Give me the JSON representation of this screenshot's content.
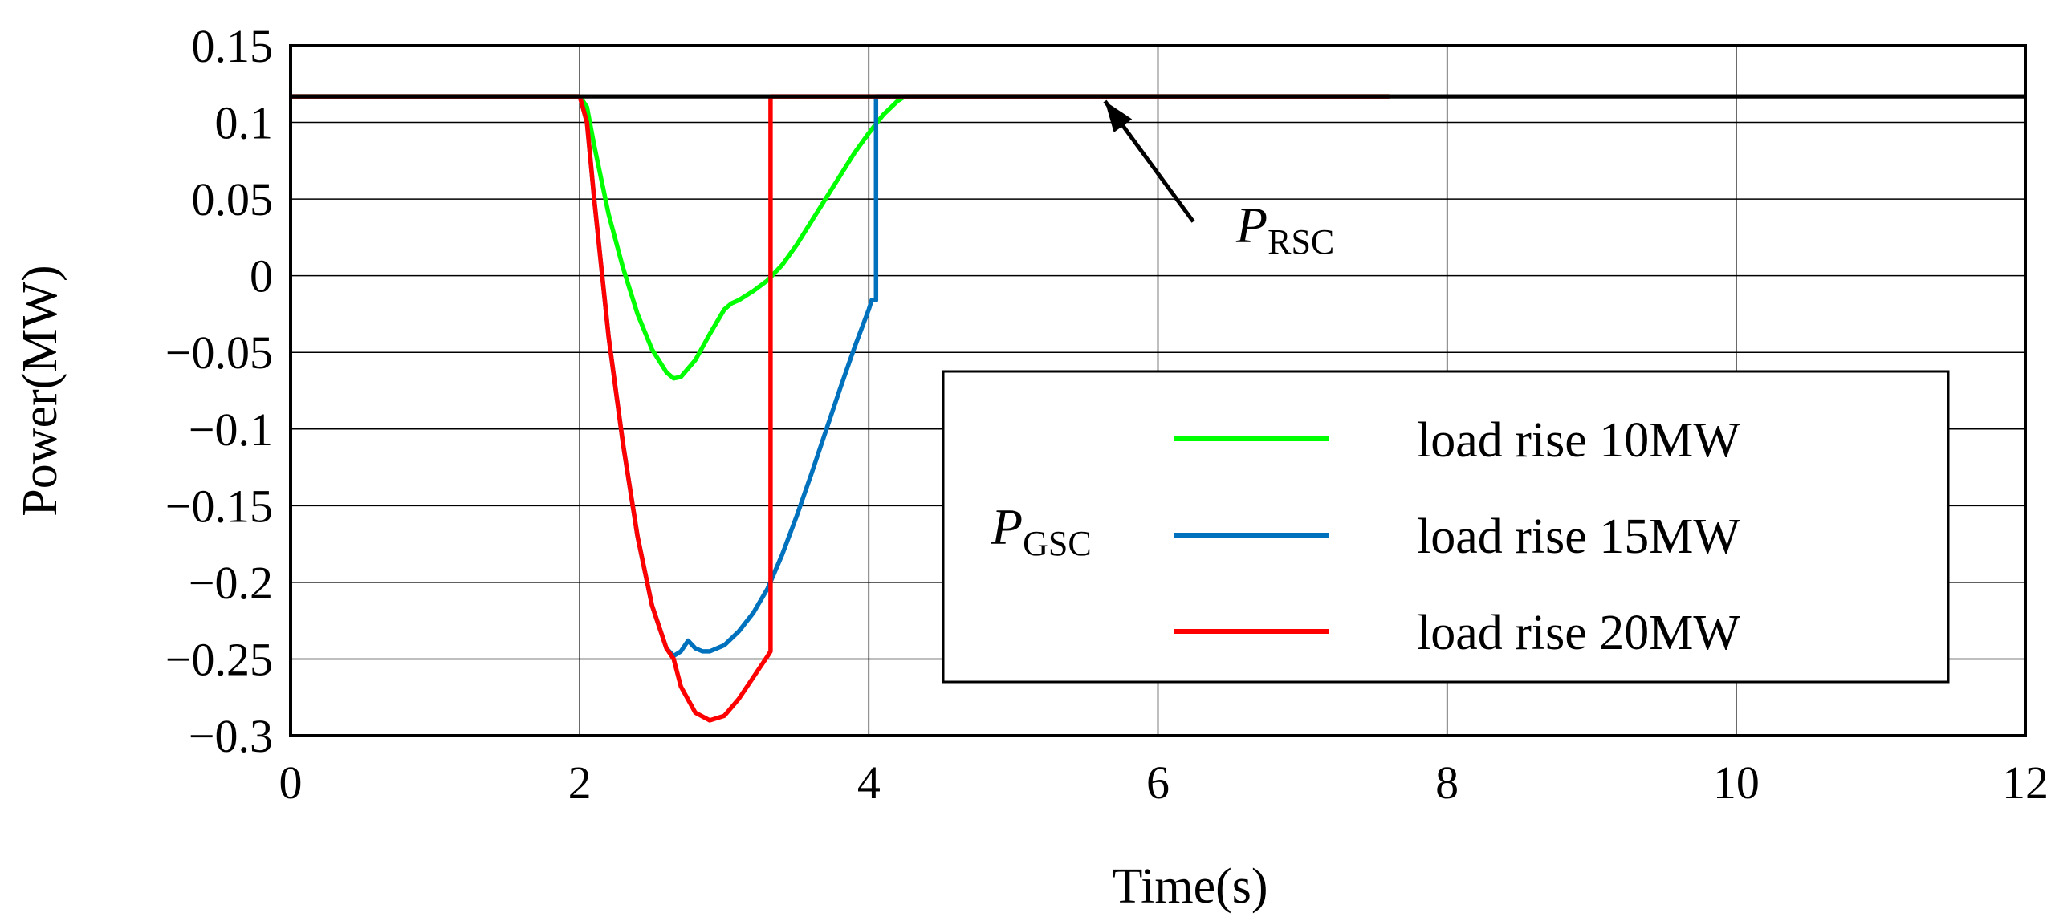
{
  "chart_data": {
    "type": "line",
    "title": "",
    "xlabel": "Time(s)",
    "ylabel": "Power(MW)",
    "xlim": [
      0,
      12
    ],
    "ylim": [
      -0.3,
      0.15
    ],
    "xticks": [
      0,
      2,
      4,
      6,
      8,
      10,
      12
    ],
    "xtick_labels": [
      "0",
      "2",
      "4",
      "6",
      "8",
      "10",
      "12"
    ],
    "yticks": [
      0.15,
      0.1,
      0.05,
      0,
      -0.05,
      -0.1,
      -0.15,
      -0.2,
      -0.25,
      -0.3
    ],
    "ytick_labels": [
      "0.15",
      "0.1",
      "0.05",
      "0",
      "−0.05",
      "−0.1",
      "−0.15",
      "−0.2",
      "−0.25",
      "−0.3"
    ],
    "grid": true,
    "legend_position": "lower-right",
    "legend_title": {
      "main": "P",
      "sub": "GSC"
    },
    "annotations": [
      {
        "main": "P",
        "sub": "RSC",
        "arrow_to": [
          5.6,
          0.117
        ],
        "text_at": [
          6.3,
          0.03
        ]
      }
    ],
    "series": [
      {
        "name": "P_RSC",
        "color": "#000000",
        "in_legend": false,
        "x": [
          0,
          12
        ],
        "y": [
          0.117,
          0.117
        ]
      },
      {
        "name": "load rise 10MW",
        "color": "#00ff00",
        "in_legend": true,
        "x": [
          0,
          2.0,
          2.05,
          2.1,
          2.2,
          2.3,
          2.4,
          2.5,
          2.6,
          2.65,
          2.7,
          2.8,
          2.9,
          3.0,
          3.05,
          3.1,
          3.2,
          3.3,
          3.4,
          3.5,
          3.6,
          3.7,
          3.8,
          3.9,
          4.0,
          4.1,
          4.2,
          4.25,
          7.6
        ],
        "y": [
          0.117,
          0.117,
          0.11,
          0.085,
          0.04,
          0.005,
          -0.025,
          -0.048,
          -0.063,
          -0.067,
          -0.066,
          -0.055,
          -0.038,
          -0.022,
          -0.018,
          -0.016,
          -0.01,
          -0.003,
          0.007,
          0.02,
          0.035,
          0.05,
          0.065,
          0.08,
          0.093,
          0.105,
          0.114,
          0.117,
          0.117
        ]
      },
      {
        "name": "load rise 15MW",
        "color": "#0072bd",
        "in_legend": true,
        "x": [
          0,
          2.0,
          2.05,
          2.1,
          2.2,
          2.3,
          2.4,
          2.5,
          2.6,
          2.65,
          2.7,
          2.75,
          2.8,
          2.85,
          2.9,
          3.0,
          3.1,
          3.2,
          3.3,
          3.4,
          3.5,
          3.6,
          3.7,
          3.8,
          3.9,
          4.0,
          4.02,
          4.02,
          4.05,
          4.05,
          7.6
        ],
        "y": [
          0.117,
          0.117,
          0.1,
          0.05,
          -0.04,
          -0.11,
          -0.17,
          -0.215,
          -0.243,
          -0.248,
          -0.245,
          -0.238,
          -0.243,
          -0.245,
          -0.245,
          -0.241,
          -0.232,
          -0.22,
          -0.204,
          -0.182,
          -0.157,
          -0.13,
          -0.102,
          -0.074,
          -0.047,
          -0.022,
          -0.016,
          -0.016,
          -0.016,
          0.117,
          0.117
        ]
      },
      {
        "name": "load rise 20MW",
        "color": "#ff0000",
        "in_legend": true,
        "x": [
          0,
          2.0,
          2.05,
          2.1,
          2.2,
          2.3,
          2.4,
          2.5,
          2.6,
          2.65,
          2.7,
          2.8,
          2.9,
          3.0,
          3.1,
          3.2,
          3.3,
          3.32,
          3.32,
          7.6
        ],
        "y": [
          0.117,
          0.117,
          0.1,
          0.05,
          -0.04,
          -0.11,
          -0.17,
          -0.215,
          -0.243,
          -0.25,
          -0.268,
          -0.285,
          -0.29,
          -0.287,
          -0.276,
          -0.262,
          -0.248,
          -0.245,
          0.117,
          0.117
        ]
      }
    ]
  }
}
